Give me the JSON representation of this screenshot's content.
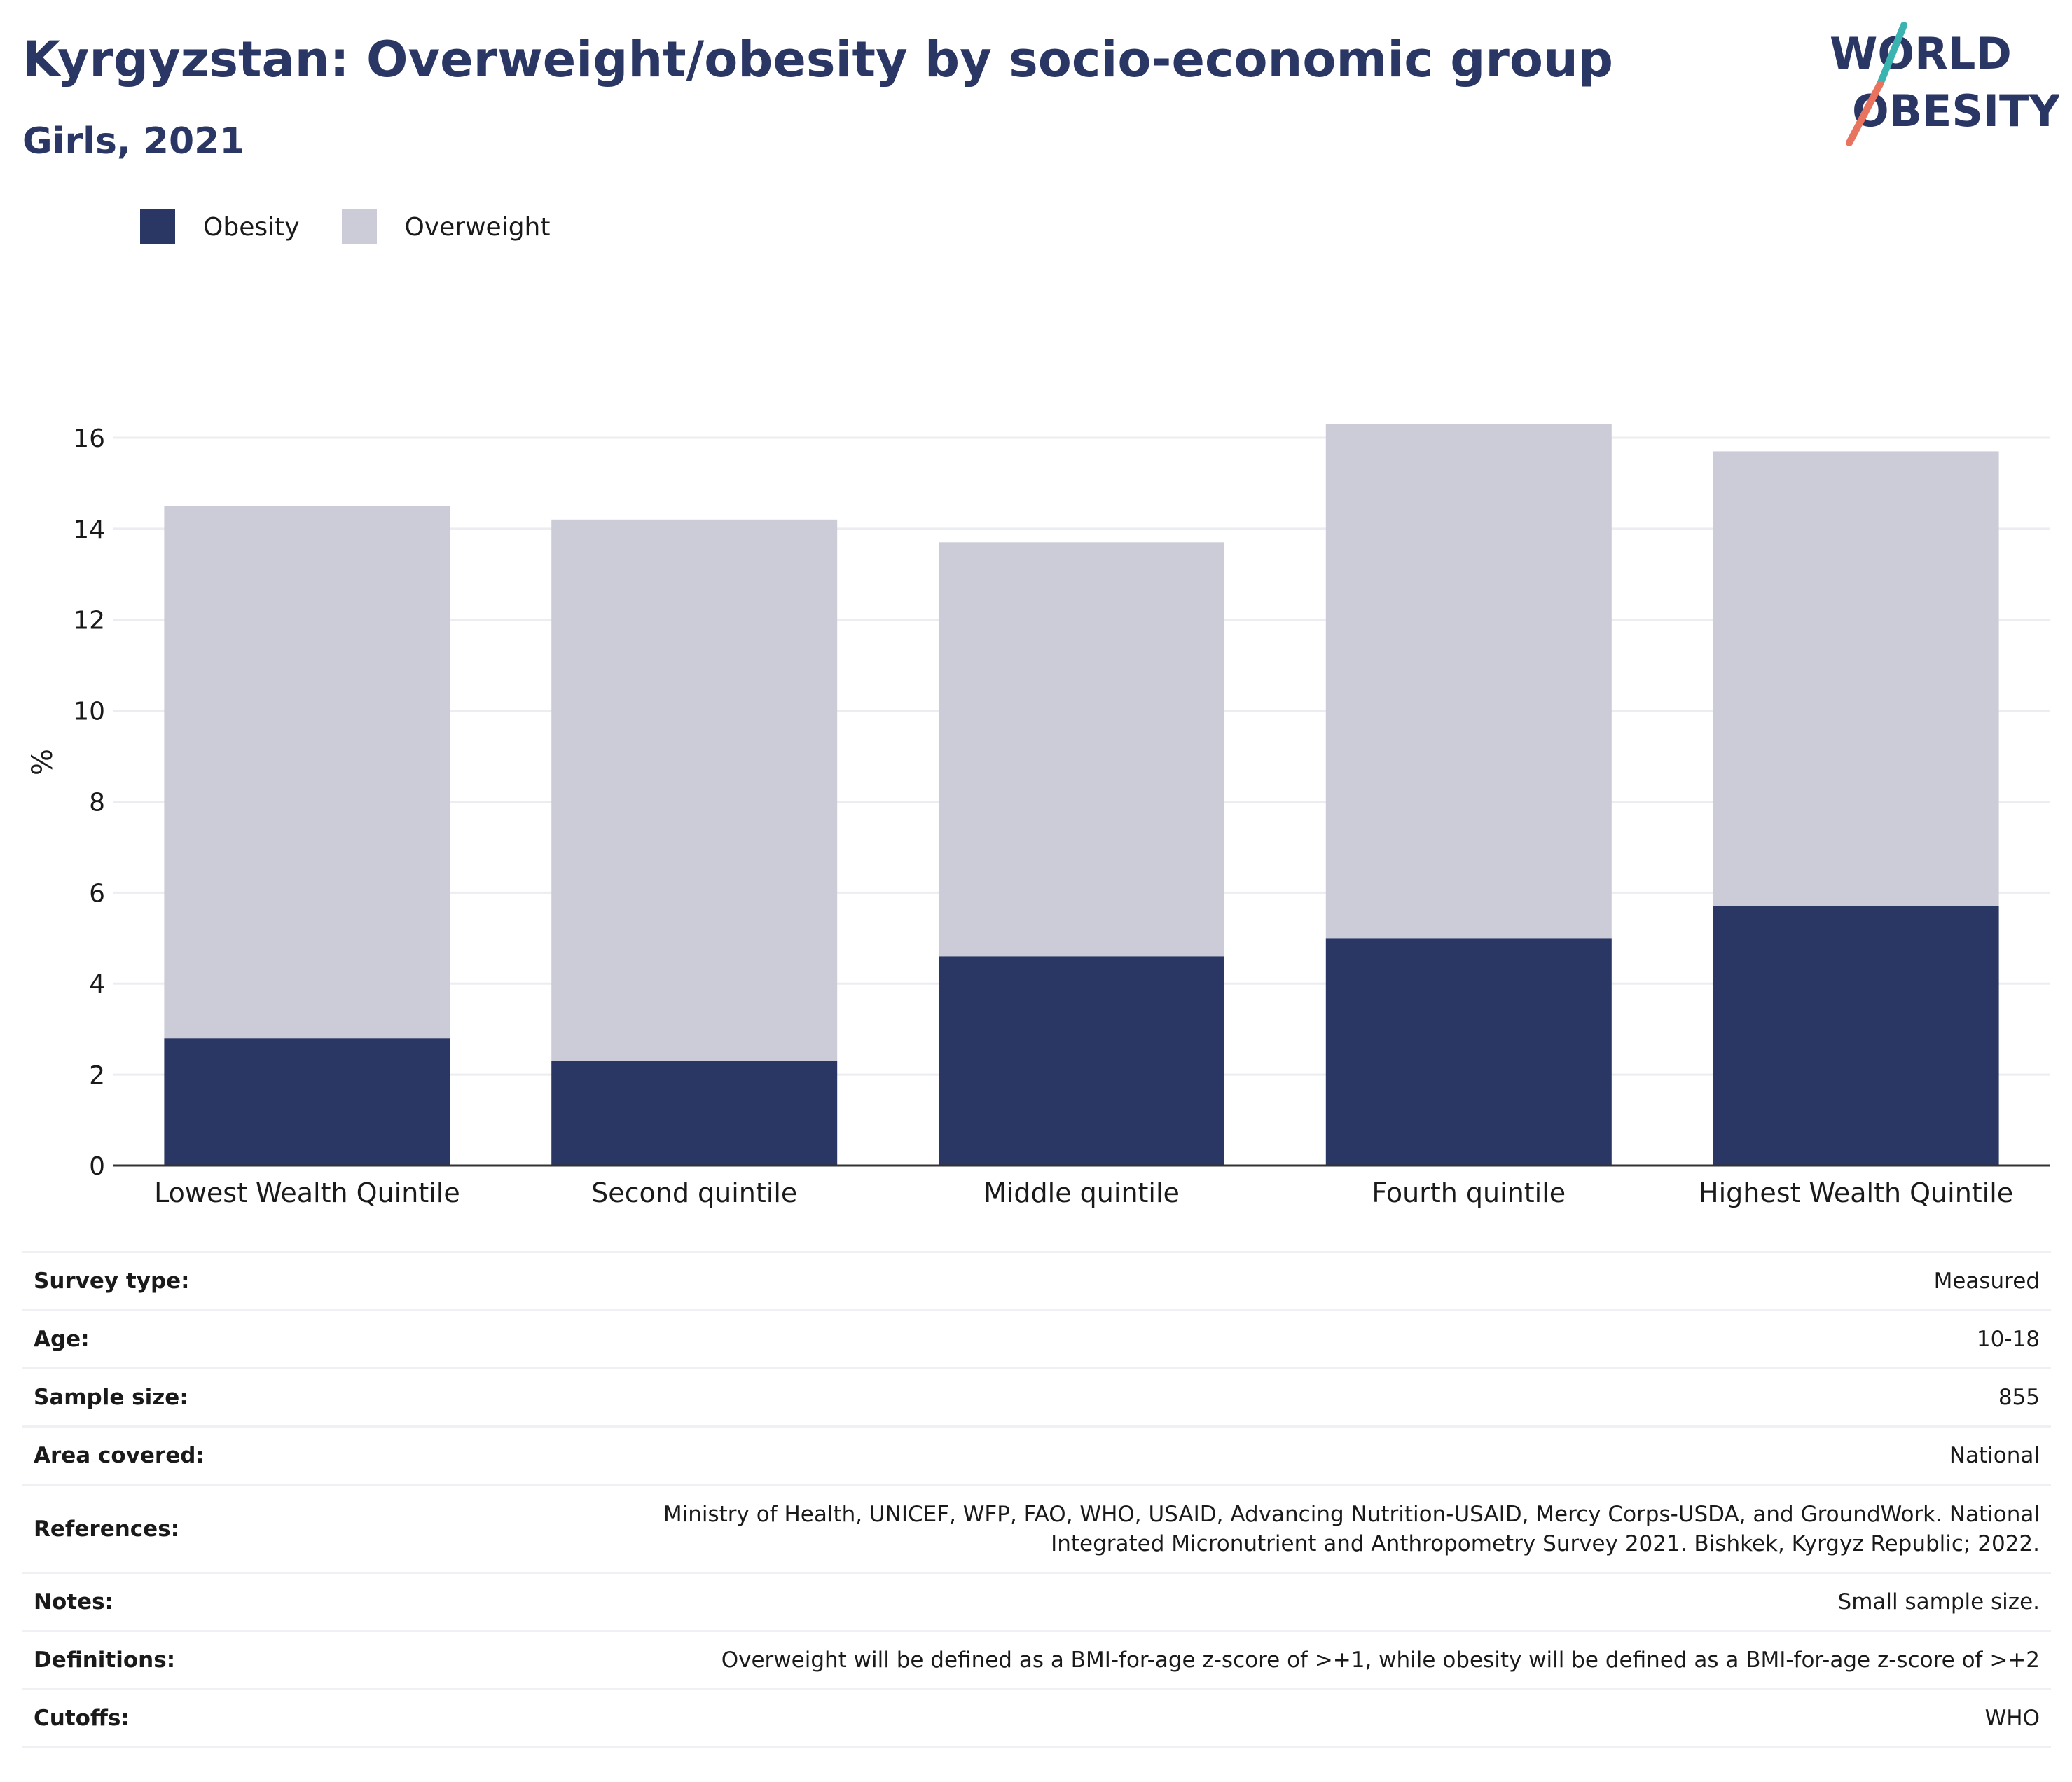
{
  "header": {
    "title": "Kyrgyzstan: Overweight/obesity by socio-economic group",
    "subtitle": "Girls, 2021"
  },
  "logo": {
    "line1": "WORLD",
    "line2": "OBESITY",
    "accent1": "#3bb3b0",
    "accent2": "#e8735e"
  },
  "colors": {
    "obesity": "#2a3663",
    "overweight": "#cbccd7",
    "title": "#2a3663"
  },
  "legend": [
    {
      "label": "Obesity",
      "color": "#2a3663"
    },
    {
      "label": "Overweight",
      "color": "#cbccd7"
    }
  ],
  "chart_data": {
    "type": "bar",
    "stacked": true,
    "categories": [
      "Lowest Wealth Quintile",
      "Second quintile",
      "Middle quintile",
      "Fourth quintile",
      "Highest Wealth Quintile"
    ],
    "series": [
      {
        "name": "Obesity",
        "values": [
          2.8,
          2.3,
          4.6,
          5.0,
          5.7
        ]
      },
      {
        "name": "Overweight",
        "values": [
          11.7,
          11.9,
          9.1,
          11.3,
          10.0
        ]
      }
    ],
    "totals": [
      14.5,
      14.2,
      13.7,
      16.3,
      15.7
    ],
    "ylabel": "%",
    "ylim": [
      0,
      17
    ],
    "yticks": [
      0,
      2,
      4,
      6,
      8,
      10,
      12,
      14,
      16
    ],
    "grid": true,
    "legend_position": "top-left"
  },
  "info": [
    {
      "key": "Survey type:",
      "value": "Measured"
    },
    {
      "key": "Age:",
      "value": "10-18"
    },
    {
      "key": "Sample size:",
      "value": "855"
    },
    {
      "key": "Area covered:",
      "value": "National"
    },
    {
      "key": "References:",
      "value_lines": [
        "Ministry of Health, UNICEF, WFP, FAO, WHO, USAID, Advancing Nutrition-USAID, Mercy Corps-USDA, and GroundWork. National",
        "Integrated Micronutrient and Anthropometry Survey 2021. Bishkek, Kyrgyz Republic; 2022."
      ]
    },
    {
      "key": "Notes:",
      "value": "Small sample size."
    },
    {
      "key": "Definitions:",
      "value": "Overweight will be defined as a BMI-for-age z-score of >+1, while obesity will be defined as a BMI-for-age z-score of >+2"
    },
    {
      "key": "Cutoffs:",
      "value": "WHO"
    }
  ]
}
